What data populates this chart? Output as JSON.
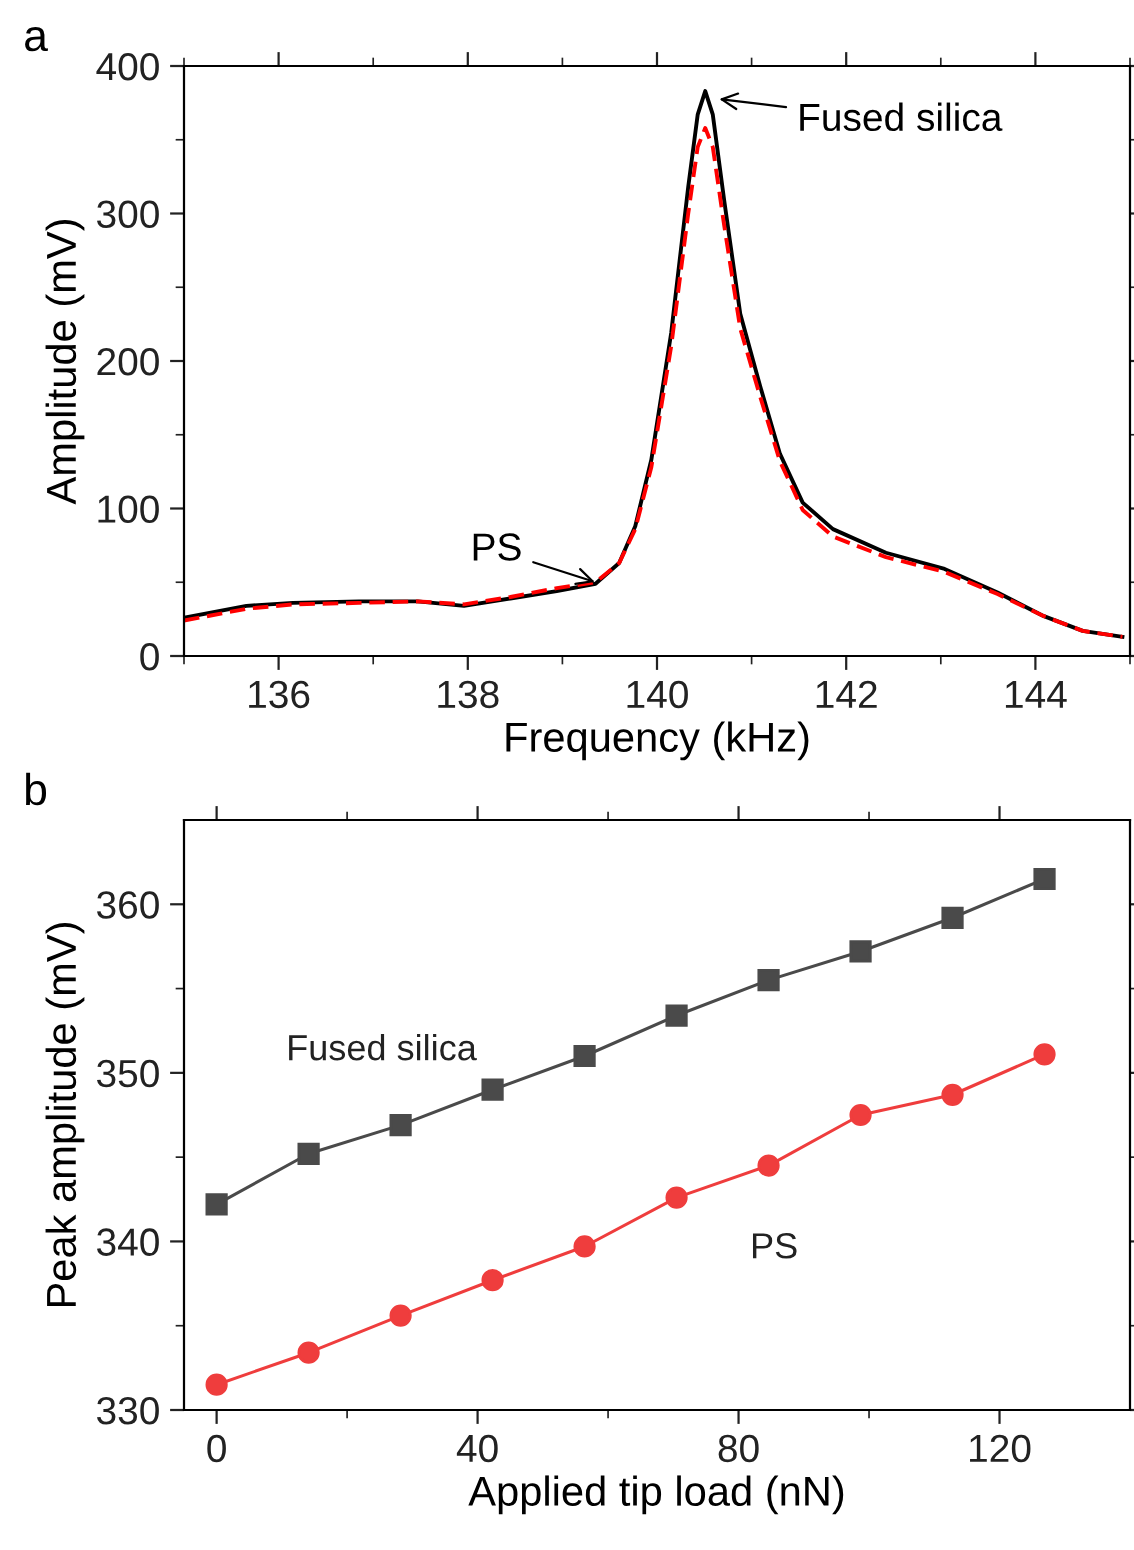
{
  "chart_data": [
    {
      "type": "line",
      "title": "a",
      "xlabel": "Frequency (kHz)",
      "ylabel": "Amplitude (mV)",
      "xlim": [
        135,
        145
      ],
      "xticks": [
        {
          "value": 135,
          "label": null
        },
        136,
        {
          "value": 137,
          "label": null
        },
        138,
        {
          "value": 139,
          "label": null
        },
        140,
        {
          "value": 141,
          "label": null
        },
        142,
        {
          "value": 143,
          "label": null
        },
        144,
        {
          "value": 145,
          "label": null
        }
      ],
      "ylim": [
        0,
        400
      ],
      "yticks": [
        0,
        {
          "value": 50,
          "label": null
        },
        100,
        {
          "value": 150,
          "label": null
        },
        200,
        {
          "value": 250,
          "label": null
        },
        300,
        {
          "value": 350,
          "label": null
        },
        400
      ],
      "grid": false,
      "legend": false,
      "marker": "none",
      "x": [
        135.0,
        135.66,
        136.15,
        136.85,
        137.47,
        137.96,
        138.45,
        138.94,
        139.35,
        139.6,
        139.77,
        139.94,
        140.15,
        140.33,
        140.43,
        140.51,
        140.59,
        140.71,
        140.88,
        141.09,
        141.3,
        141.54,
        141.86,
        142.42,
        143.04,
        143.6,
        144.09,
        144.5,
        144.92
      ],
      "series": [
        {
          "color": "#000000",
          "line_style": "solid",
          "values": [
            26,
            34,
            36,
            37,
            37,
            34,
            39,
            44,
            49,
            63,
            88,
            133,
            219,
            318,
            367,
            383,
            367,
            309,
            232,
            183,
            137,
            104,
            86,
            70,
            59,
            43,
            27,
            17,
            13
          ]
        },
        {
          "color": "#ff0000",
          "line_style": "dashed",
          "values": [
            24,
            32,
            35,
            36,
            37,
            35,
            40,
            46,
            50,
            63,
            86,
            128,
            210,
            300,
            345,
            358,
            345,
            292,
            222,
            176,
            132,
            99,
            81,
            67,
            57,
            42,
            27,
            17,
            13
          ]
        }
      ],
      "annotations": [
        {
          "text": "Fused silica",
          "x": 140.6,
          "y": 378
        },
        {
          "text": "PS",
          "x": 139.4,
          "y": 49
        }
      ]
    },
    {
      "type": "line",
      "title": "b",
      "xlabel": "Applied tip load (nN)",
      "ylabel": "Peak amplitude (mV)",
      "xlim": [
        -5,
        140
      ],
      "xticks": [
        0,
        {
          "value": 20,
          "label": null
        },
        40,
        {
          "value": 60,
          "label": null
        },
        80,
        {
          "value": 100,
          "label": null
        },
        120
      ],
      "ylim": [
        330,
        365
      ],
      "yticks": [
        330,
        {
          "value": 335,
          "label": null
        },
        340,
        {
          "value": 345,
          "label": null
        },
        350,
        {
          "value": 355,
          "label": null
        },
        360
      ],
      "grid": false,
      "legend": false,
      "x": [
        0,
        14.1,
        28.2,
        42.3,
        56.4,
        70.5,
        84.6,
        98.7,
        112.8,
        126.9
      ],
      "series": [
        {
          "name": "Fused silica",
          "color": "#4a4a4a",
          "marker": "square",
          "values": [
            342.2,
            345.2,
            346.9,
            349.0,
            351.0,
            353.4,
            355.5,
            357.2,
            359.2,
            361.5
          ]
        },
        {
          "name": "PS",
          "color": "#ef3d3d",
          "marker": "circle",
          "values": [
            331.5,
            333.4,
            335.6,
            337.7,
            339.7,
            342.6,
            344.5,
            347.5,
            348.7,
            351.1
          ]
        }
      ]
    }
  ]
}
